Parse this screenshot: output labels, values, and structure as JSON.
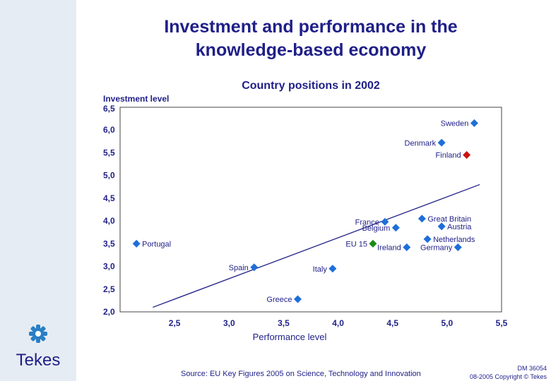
{
  "title_line1": "Investment and performance in the",
  "title_line2": "knowledge-based economy",
  "subtitle": "Country positions in 2002",
  "source": "Source: EU Key Figures 2005 on Science, Technology and Innovation",
  "doc_id": "DM 36054",
  "copyright": "08-2005 Copyright © Tekes",
  "logo_text": "Tekes",
  "colors": {
    "title": "#1f1f88",
    "marker": "#1e6fd9",
    "finland": "#cc1111",
    "eu": "#1a8a1a",
    "side": "#e6ecf3",
    "logo": "#2a7fc4"
  },
  "chart_data": {
    "type": "scatter",
    "ylabel_line1": "Investment level",
    "ylabel_line2": "6,5",
    "xlabel": "Performance level",
    "xlim": [
      2.0,
      5.5
    ],
    "ylim": [
      2.0,
      6.5
    ],
    "x_ticks": [
      "2,5",
      "3,0",
      "3,5",
      "4,0",
      "4,5",
      "5,0",
      "5,5"
    ],
    "x_tick_values": [
      2.5,
      3.0,
      3.5,
      4.0,
      4.5,
      5.0,
      5.5
    ],
    "y_ticks": [
      "6,0",
      "5,5",
      "5,0",
      "4,5",
      "4,0",
      "3,5",
      "3,0",
      "2,5",
      "2,0"
    ],
    "y_tick_values": [
      6.0,
      5.5,
      5.0,
      4.5,
      4.0,
      3.5,
      3.0,
      2.5,
      2.0
    ],
    "trendline": [
      [
        2.3,
        2.1
      ],
      [
        5.3,
        4.8
      ]
    ],
    "points": [
      {
        "name": "Sweden",
        "x": 5.25,
        "y": 6.15,
        "label_side": "left",
        "highlight": "normal"
      },
      {
        "name": "Denmark",
        "x": 4.95,
        "y": 5.72,
        "label_side": "left",
        "highlight": "normal"
      },
      {
        "name": "Finland",
        "x": 5.18,
        "y": 5.45,
        "label_side": "left",
        "highlight": "finland"
      },
      {
        "name": "France",
        "x": 4.43,
        "y": 3.98,
        "label_side": "left",
        "highlight": "normal"
      },
      {
        "name": "Belgium",
        "x": 4.53,
        "y": 3.85,
        "label_side": "left",
        "highlight": "normal"
      },
      {
        "name": "Great Britain",
        "x": 4.77,
        "y": 4.05,
        "label_side": "right",
        "highlight": "normal"
      },
      {
        "name": "Austria",
        "x": 4.95,
        "y": 3.88,
        "label_side": "right",
        "highlight": "normal"
      },
      {
        "name": "Netherlands",
        "x": 4.82,
        "y": 3.6,
        "label_side": "right",
        "highlight": "normal"
      },
      {
        "name": "Germany",
        "x": 5.1,
        "y": 3.42,
        "label_side": "left",
        "highlight": "normal"
      },
      {
        "name": "EU 15",
        "x": 4.32,
        "y": 3.5,
        "label_side": "left",
        "highlight": "eu"
      },
      {
        "name": "Ireland",
        "x": 4.63,
        "y": 3.42,
        "label_side": "left",
        "highlight": "normal"
      },
      {
        "name": "Portugal",
        "x": 2.15,
        "y": 3.5,
        "label_side": "right",
        "highlight": "normal"
      },
      {
        "name": "Spain",
        "x": 3.23,
        "y": 2.98,
        "label_side": "left",
        "highlight": "normal"
      },
      {
        "name": "Italy",
        "x": 3.95,
        "y": 2.95,
        "label_side": "left",
        "highlight": "normal"
      },
      {
        "name": "Greece",
        "x": 3.63,
        "y": 2.28,
        "label_side": "left",
        "highlight": "normal"
      }
    ]
  }
}
